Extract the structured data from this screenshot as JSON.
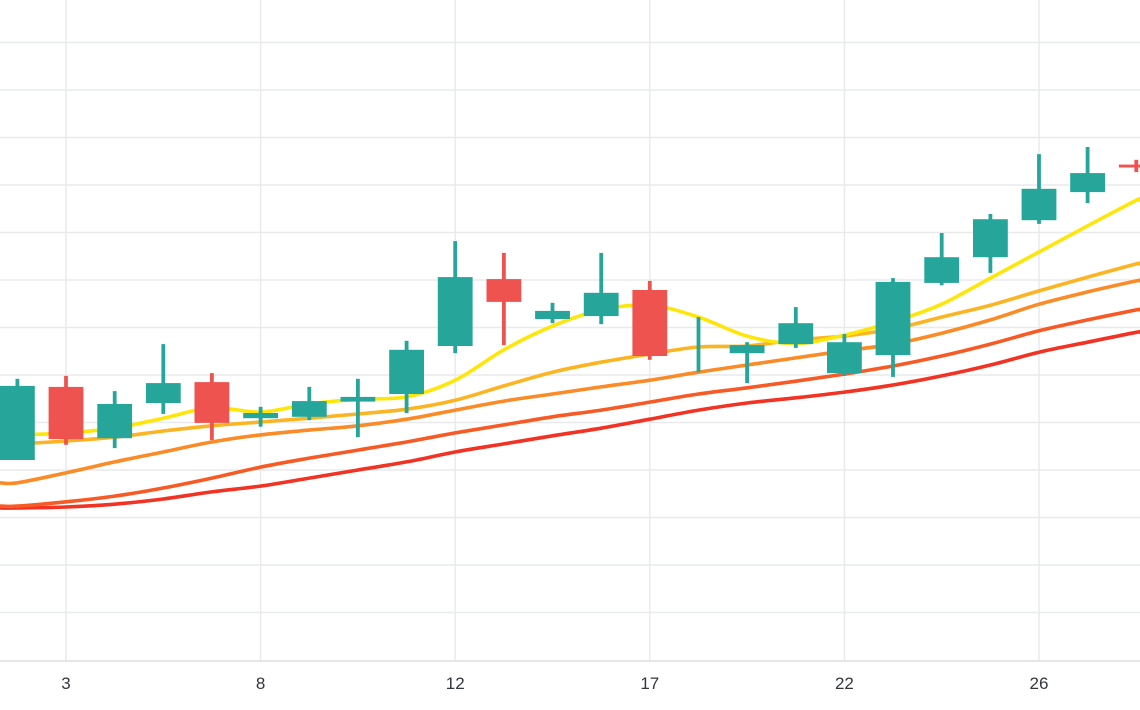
{
  "chart": {
    "background": "#ffffff",
    "grid_color": "#e9eaec",
    "axis_line_color": "#dcdee3",
    "axis_text_color": "#33363d",
    "up_color": "#26a69a",
    "down_color": "#ef5350"
  },
  "chart_data": {
    "type": "candlestick",
    "title": "",
    "xlabel": "",
    "ylabel": "",
    "legend_visible": false,
    "grid": "on",
    "x_axis": {
      "tick_labels": [
        "3",
        "8",
        "12",
        "17",
        "22",
        "26"
      ],
      "tick_candle_indices": [
        1,
        5,
        9,
        13,
        17,
        21
      ]
    },
    "y_axis": {
      "visible": false,
      "unit": "grid-units (1 unit = one horizontal gridline; no numeric price scale shown)",
      "range": [
        0,
        14
      ]
    },
    "candles": [
      {
        "o": 4.21,
        "h": 5.92,
        "l": 4.21,
        "c": 5.77
      },
      {
        "o": 5.75,
        "h": 5.98,
        "l": 4.53,
        "c": 4.65
      },
      {
        "o": 4.67,
        "h": 5.66,
        "l": 4.46,
        "c": 5.39
      },
      {
        "o": 5.41,
        "h": 6.65,
        "l": 5.18,
        "c": 5.83
      },
      {
        "o": 5.85,
        "h": 6.04,
        "l": 4.63,
        "c": 4.99
      },
      {
        "o": 5.09,
        "h": 5.33,
        "l": 4.91,
        "c": 5.2
      },
      {
        "o": 5.12,
        "h": 5.75,
        "l": 5.05,
        "c": 5.45
      },
      {
        "o": 5.44,
        "h": 5.92,
        "l": 4.69,
        "c": 5.54
      },
      {
        "o": 5.6,
        "h": 6.72,
        "l": 5.2,
        "c": 6.53
      },
      {
        "o": 6.61,
        "h": 8.82,
        "l": 6.46,
        "c": 8.06
      },
      {
        "o": 8.02,
        "h": 8.57,
        "l": 6.63,
        "c": 7.54
      },
      {
        "o": 7.18,
        "h": 7.52,
        "l": 7.09,
        "c": 7.35
      },
      {
        "o": 7.24,
        "h": 8.57,
        "l": 7.07,
        "c": 7.73
      },
      {
        "o": 7.79,
        "h": 7.98,
        "l": 6.32,
        "c": 6.4
      },
      {
        "o": 6.55,
        "h": 7.22,
        "l": 6.06,
        "c": 6.55
      },
      {
        "o": 6.46,
        "h": 6.69,
        "l": 5.83,
        "c": 6.63
      },
      {
        "o": 6.65,
        "h": 7.43,
        "l": 6.57,
        "c": 7.09
      },
      {
        "o": 6.04,
        "h": 6.86,
        "l": 5.98,
        "c": 6.69
      },
      {
        "o": 6.42,
        "h": 8.04,
        "l": 5.96,
        "c": 7.96
      },
      {
        "o": 7.94,
        "h": 8.99,
        "l": 7.89,
        "c": 8.48
      },
      {
        "o": 8.48,
        "h": 9.39,
        "l": 8.15,
        "c": 9.28
      },
      {
        "o": 9.26,
        "h": 10.65,
        "l": 9.18,
        "c": 9.92
      },
      {
        "o": 9.85,
        "h": 10.8,
        "l": 9.62,
        "c": 10.25
      },
      {
        "o": 10.43,
        "h": 10.53,
        "l": 10.27,
        "c": 10.37
      }
    ],
    "overlays": [
      {
        "id": "ma-yellow",
        "color": "#ffe60a",
        "values": [
          4.74,
          4.78,
          4.88,
          5.09,
          5.31,
          5.22,
          5.39,
          5.49,
          5.54,
          5.89,
          6.53,
          7.03,
          7.37,
          7.47,
          7.22,
          6.82,
          6.66,
          6.84,
          7.12,
          7.49,
          8.04,
          8.59,
          9.14,
          9.68
        ]
      },
      {
        "id": "ma-gold",
        "color": "#fbb422",
        "values": [
          4.55,
          4.61,
          4.69,
          4.82,
          4.93,
          5.01,
          5.09,
          5.18,
          5.28,
          5.47,
          5.77,
          6.06,
          6.27,
          6.44,
          6.59,
          6.61,
          6.74,
          6.82,
          6.97,
          7.22,
          7.47,
          7.77,
          8.06,
          8.34
        ]
      },
      {
        "id": "ma-orange",
        "color": "#fa8b27",
        "values": [
          3.73,
          3.94,
          4.17,
          4.38,
          4.59,
          4.74,
          4.84,
          4.93,
          5.07,
          5.26,
          5.45,
          5.6,
          5.75,
          5.89,
          6.06,
          6.21,
          6.36,
          6.51,
          6.65,
          6.88,
          7.16,
          7.49,
          7.75,
          7.98
        ]
      },
      {
        "id": "ma-deep-orange",
        "color": "#f75a24",
        "values": [
          3.24,
          3.33,
          3.45,
          3.62,
          3.83,
          4.06,
          4.25,
          4.42,
          4.59,
          4.78,
          4.95,
          5.12,
          5.26,
          5.43,
          5.6,
          5.73,
          5.87,
          6.02,
          6.19,
          6.4,
          6.65,
          6.93,
          7.16,
          7.37
        ]
      },
      {
        "id": "ma-red",
        "color": "#f23223",
        "values": [
          3.2,
          3.22,
          3.28,
          3.39,
          3.54,
          3.66,
          3.83,
          4.0,
          4.17,
          4.38,
          4.55,
          4.72,
          4.88,
          5.07,
          5.26,
          5.41,
          5.52,
          5.64,
          5.79,
          5.98,
          6.21,
          6.48,
          6.69,
          6.9
        ]
      }
    ]
  }
}
